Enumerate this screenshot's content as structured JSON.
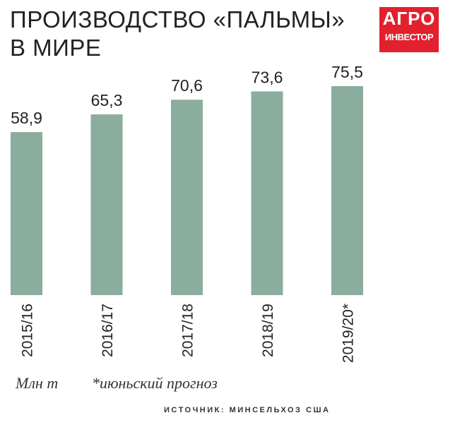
{
  "chart_data": {
    "type": "bar",
    "title": "ПРОИЗВОДСТВО «ПАЛЬМЫ» В МИРЕ",
    "logo": [
      "АГРО",
      "ИНВЕСТОР"
    ],
    "categories": [
      "2015/16",
      "2016/17",
      "2017/18",
      "2018/19",
      "2019/20*"
    ],
    "values": [
      58.9,
      65.3,
      70.6,
      73.6,
      75.5
    ],
    "value_labels": [
      "58,9",
      "65,3",
      "70,6",
      "73,6",
      "75,5"
    ],
    "color": "#8aad9e",
    "units": "Млн т",
    "note": "*июньский прогноз",
    "source": "ИСТОЧНИК: МИНСЕЛЬХОЗ США"
  }
}
